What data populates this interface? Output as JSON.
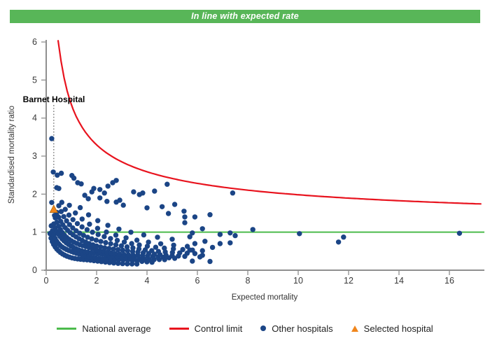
{
  "header": {
    "banner_label": "In line with expected rate",
    "banner_color": "#58b658"
  },
  "chart_data": {
    "type": "scatter",
    "xlabel": "Expected mortality",
    "ylabel": "Standardised mortality ratio",
    "xlim": [
      0,
      17.4
    ],
    "ylim": [
      0,
      6
    ],
    "x_ticks": [
      0,
      2,
      4,
      6,
      8,
      10,
      12,
      14,
      16
    ],
    "y_ticks": [
      0,
      1,
      2,
      3,
      4,
      5,
      6
    ],
    "grid": false,
    "national_average": 1.0,
    "control_limit": {
      "formula": "SMR = 1 + 3/sqrt(E) + 0.35/E",
      "base": 1,
      "k": 3,
      "k2": 0.35,
      "e_start": 0.47,
      "e_end": 17.35
    },
    "annotation": {
      "label": "Barnet Hospital",
      "x": 0.3
    },
    "selected_hospital": {
      "x": 0.3,
      "y": 1.6
    },
    "colors": {
      "national_average": "#4cbb4c",
      "control_limit": "#e8131e",
      "other_hospitals": "#1b4586",
      "selected_hospital": "#f0861c"
    },
    "other_hospitals": {
      "bands_note": "dense hyperbolic trails of hospital points, SMR = a*E^b sampled for n hospitals between e0 and e1",
      "bands": [
        {
          "a": 0.34,
          "b": -0.55,
          "e0": 0.15,
          "e1": 3.6,
          "n": 30
        },
        {
          "a": 0.48,
          "b": -0.55,
          "e0": 0.2,
          "e1": 4.2,
          "n": 33
        },
        {
          "a": 0.63,
          "b": -0.55,
          "e0": 0.3,
          "e1": 4.7,
          "n": 34
        },
        {
          "a": 0.78,
          "b": -0.55,
          "e0": 0.36,
          "e1": 5.1,
          "n": 34
        },
        {
          "a": 0.95,
          "b": -0.55,
          "e0": 0.42,
          "e1": 5.5,
          "n": 32
        },
        {
          "a": 1.15,
          "b": -0.55,
          "e0": 0.5,
          "e1": 5.9,
          "n": 28
        },
        {
          "a": 1.38,
          "b": -0.55,
          "e0": 0.62,
          "e1": 6.2,
          "n": 22
        },
        {
          "a": 1.62,
          "b": -0.55,
          "e0": 0.92,
          "e1": 5.6,
          "n": 13
        },
        {
          "a": 1.95,
          "b": -0.55,
          "e0": 1.35,
          "e1": 5.0,
          "n": 9
        }
      ],
      "scatter": [
        [
          0.22,
          3.46
        ],
        [
          0.28,
          2.58
        ],
        [
          0.44,
          2.5
        ],
        [
          0.6,
          2.55
        ],
        [
          1.02,
          2.49
        ],
        [
          1.1,
          2.42
        ],
        [
          1.25,
          2.3
        ],
        [
          1.39,
          2.27
        ],
        [
          0.42,
          2.17
        ],
        [
          0.5,
          2.15
        ],
        [
          1.53,
          1.97
        ],
        [
          1.67,
          1.88
        ],
        [
          1.81,
          2.06
        ],
        [
          1.89,
          2.15
        ],
        [
          2.13,
          2.12
        ],
        [
          2.31,
          2.03
        ],
        [
          2.45,
          2.21
        ],
        [
          2.64,
          2.3
        ],
        [
          2.78,
          2.36
        ],
        [
          2.13,
          1.9
        ],
        [
          2.41,
          1.81
        ],
        [
          2.78,
          1.79
        ],
        [
          2.92,
          1.84
        ],
        [
          3.06,
          1.71
        ],
        [
          3.47,
          2.06
        ],
        [
          3.7,
          1.99
        ],
        [
          3.83,
          2.03
        ],
        [
          4.3,
          2.08
        ],
        [
          4.8,
          2.26
        ],
        [
          5.1,
          1.73
        ],
        [
          0.22,
          1.78
        ],
        [
          0.33,
          1.44
        ],
        [
          0.44,
          1.42
        ],
        [
          4.0,
          1.64
        ],
        [
          4.6,
          1.67
        ],
        [
          4.85,
          1.49
        ],
        [
          5.47,
          1.55
        ],
        [
          5.5,
          1.4
        ],
        [
          5.9,
          1.4
        ],
        [
          5.5,
          1.25
        ],
        [
          6.5,
          1.46
        ],
        [
          5.8,
          0.98
        ],
        [
          5.7,
          0.88
        ],
        [
          5.9,
          0.7
        ],
        [
          5.7,
          0.53
        ],
        [
          6.2,
          0.39
        ],
        [
          6.1,
          0.35
        ],
        [
          5.8,
          0.24
        ],
        [
          6.2,
          1.09
        ],
        [
          6.3,
          0.76
        ],
        [
          6.9,
          0.94
        ],
        [
          6.9,
          0.7
        ],
        [
          7.3,
          0.98
        ],
        [
          7.3,
          0.72
        ],
        [
          6.6,
          0.6
        ],
        [
          6.5,
          0.23
        ],
        [
          7.4,
          2.03
        ],
        [
          7.5,
          0.91
        ],
        [
          8.2,
          1.07
        ],
        [
          10.05,
          0.96
        ],
        [
          11.6,
          0.74
        ],
        [
          11.8,
          0.87
        ],
        [
          16.4,
          0.97
        ]
      ]
    },
    "legend": [
      {
        "label": "National average",
        "marker": "line",
        "color": "#4cbb4c"
      },
      {
        "label": "Control limit",
        "marker": "line",
        "color": "#e8131e"
      },
      {
        "label": "Other hospitals",
        "marker": "dot",
        "color": "#1b4586"
      },
      {
        "label": "Selected hospital",
        "marker": "triangle",
        "color": "#f0861c"
      }
    ]
  }
}
